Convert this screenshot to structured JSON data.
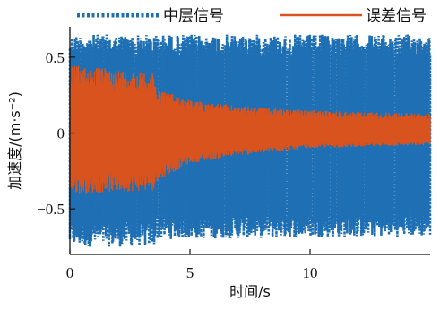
{
  "chart_data": {
    "type": "line",
    "title": "",
    "xlabel": "时间/s",
    "ylabel": "加速度/(m·s⁻²)",
    "xlim": [
      0,
      15
    ],
    "ylim": [
      -0.8,
      0.7
    ],
    "x_ticks": [
      {
        "value": 0,
        "label": "0"
      },
      {
        "value": 5,
        "label": "5"
      },
      {
        "value": 10,
        "label": "10"
      }
    ],
    "y_ticks": [
      {
        "value": 0.5,
        "label": "0.5"
      },
      {
        "value": 0,
        "label": "0"
      },
      {
        "value": -0.5,
        "label": "−0.5"
      }
    ],
    "grid": false,
    "legend": "top",
    "series": [
      {
        "name": "中层信号",
        "color": "#1f6fb4",
        "style": "dotted",
        "envelope_t": [
          0,
          3.5,
          3.6,
          15
        ],
        "envelope_upper": [
          0.65,
          0.65,
          0.65,
          0.65
        ],
        "envelope_lower": [
          -0.75,
          -0.75,
          -0.7,
          -0.68
        ]
      },
      {
        "name": "误差信号",
        "color": "#d9531e",
        "style": "solid",
        "envelope_t": [
          0,
          3.5,
          3.6,
          5,
          7,
          10,
          15
        ],
        "envelope_upper": [
          0.45,
          0.4,
          0.3,
          0.22,
          0.18,
          0.15,
          0.13
        ],
        "envelope_lower": [
          -0.4,
          -0.38,
          -0.32,
          -0.2,
          -0.15,
          -0.1,
          -0.08
        ]
      }
    ]
  }
}
